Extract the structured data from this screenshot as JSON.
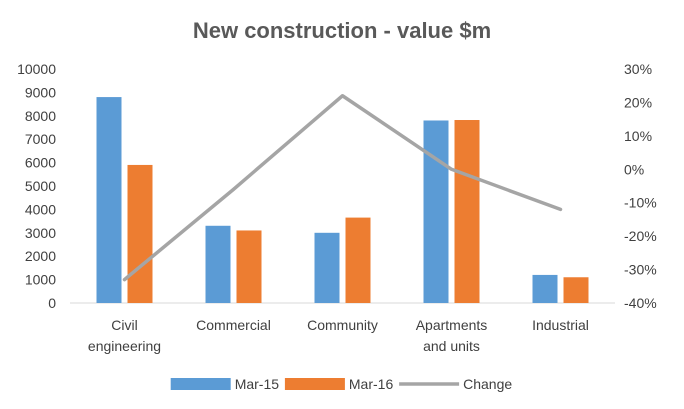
{
  "chart_data": {
    "type": "bar",
    "title": "New construction - value $m",
    "categories": [
      [
        "Civil",
        "engineering"
      ],
      [
        "Commercial"
      ],
      [
        "Community"
      ],
      [
        "Apartments",
        "and units"
      ],
      [
        "Industrial"
      ]
    ],
    "series": [
      {
        "name": "Mar-15",
        "type": "bar",
        "axis": "left",
        "color": "#5B9BD5",
        "values": [
          8800,
          3300,
          3000,
          7800,
          1200
        ]
      },
      {
        "name": "Mar-16",
        "type": "bar",
        "axis": "right_scale_left",
        "color": "#ED7D31",
        "values": [
          5900,
          3100,
          3650,
          7820,
          1100
        ]
      },
      {
        "name": "Change",
        "type": "line",
        "axis": "right",
        "color": "#A5A5A5",
        "values": [
          -33,
          -6,
          22,
          0,
          -12
        ]
      }
    ],
    "y_left": {
      "min": 0,
      "max": 10000,
      "step": 1000,
      "tick_labels": [
        "0",
        "1000",
        "2000",
        "3000",
        "4000",
        "5000",
        "6000",
        "7000",
        "8000",
        "9000",
        "10000"
      ]
    },
    "y_right": {
      "min": -40,
      "max": 30,
      "step": 10,
      "tick_labels": [
        "-40%",
        "-30%",
        "-20%",
        "-10%",
        "0%",
        "10%",
        "20%",
        "30%"
      ]
    },
    "grid": false,
    "legend_position": "bottom"
  }
}
